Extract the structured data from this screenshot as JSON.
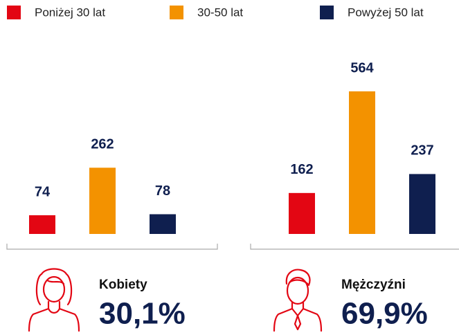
{
  "chart_data": {
    "type": "bar",
    "categories": [
      "Kobiety",
      "Mężczyźni"
    ],
    "series": [
      {
        "name": "Poniżej 30 lat",
        "color": "#e30613",
        "values": [
          74,
          162
        ]
      },
      {
        "name": "30-50 lat",
        "color": "#f39200",
        "values": [
          262,
          564
        ]
      },
      {
        "name": "Powyżej 50 lat",
        "color": "#0f1f4f",
        "values": [
          78,
          237
        ]
      }
    ],
    "shares": {
      "values": [
        30.1,
        69.9
      ],
      "value_labels": [
        "30,1%",
        "69,9%"
      ]
    }
  }
}
